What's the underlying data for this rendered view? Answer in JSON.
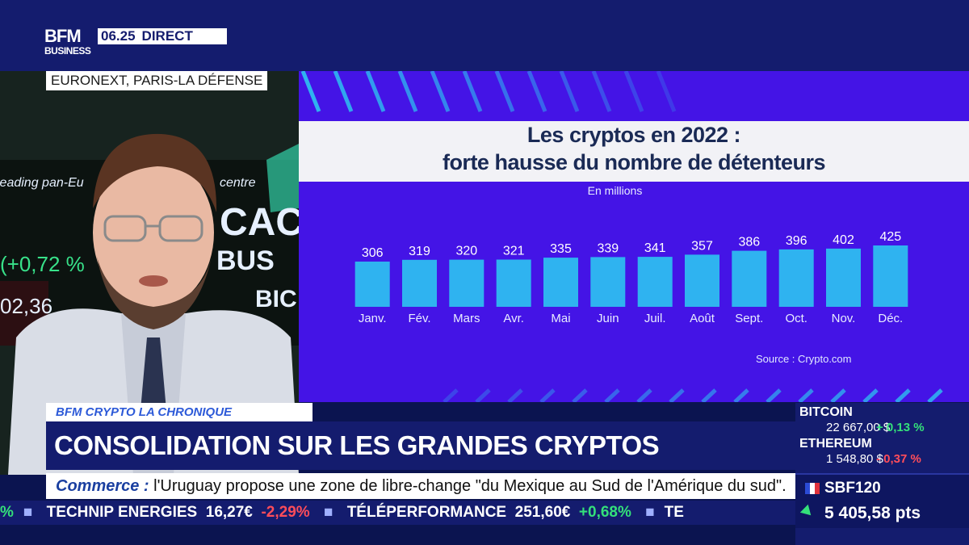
{
  "broadcast": {
    "logo_top": "BFM",
    "logo_bottom": "BUSINESS",
    "time": "06.25",
    "live": "DIRECT",
    "location": "EURONEXT, PARIS-LA DÉFENSE"
  },
  "background_board": {
    "line1": "leading pan-Eu",
    "line1b": "centre",
    "ticker1": "CAC",
    "ticker2": "(+0,72 %",
    "ticker3": "BUS",
    "ticker4": "02,36",
    "ticker5": "BIC"
  },
  "chart_data": {
    "type": "bar",
    "title": "Les cryptos en 2022 :",
    "subtitle_title": "forte hausse du nombre de détenteurs",
    "unit_label": "En millions",
    "source": "Source : Crypto.com",
    "categories": [
      "Janv.",
      "Fév.",
      "Mars",
      "Avr.",
      "Mai",
      "Juin",
      "Juil.",
      "Août",
      "Sept.",
      "Oct.",
      "Nov.",
      "Déc."
    ],
    "values": [
      306,
      319,
      320,
      321,
      335,
      339,
      341,
      357,
      386,
      396,
      402,
      425
    ],
    "ylim": [
      0,
      425
    ],
    "grid": false,
    "bar_color": "#2fb3f0"
  },
  "lower_third": {
    "tag": "BFM CRYPTO LA CHRONIQUE",
    "headline": "CONSOLIDATION SUR LES GRANDES CRYPTOS",
    "news_label": "Commerce :",
    "news_text": "l'Uruguay propose une zone de libre-change \"du Mexique au Sud de l'Amérique du sud\"."
  },
  "ticker": [
    {
      "name": "TECHNIP ENERGIES",
      "value": "16,27€",
      "change": "-2,29%",
      "dir": "neg"
    },
    {
      "name": "TÉLÉPERFORMANCE",
      "value": "251,60€",
      "change": "+0,68%",
      "dir": "pos"
    }
  ],
  "markets": {
    "btc_name": "BITCOIN",
    "btc_value": "22 667,00 $",
    "btc_change": "+ 0,13 %",
    "eth_name": "ETHEREUM",
    "eth_value": "1 548,80 $",
    "eth_change": "- 0,37 %",
    "index_name": "SBF120",
    "index_value": "5 405,58 pts"
  },
  "colors": {
    "navy": "#141c6e",
    "panel": "#4414e6",
    "positive": "#34e07a",
    "negative": "#ff4d5a"
  }
}
